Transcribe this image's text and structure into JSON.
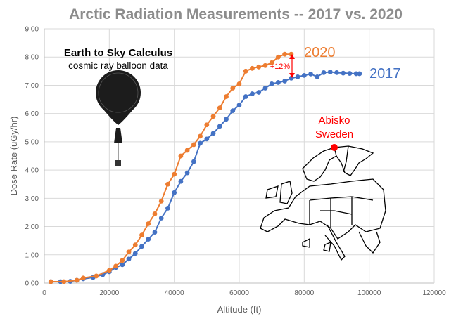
{
  "chart_data": {
    "type": "line",
    "title": "Arctic Radiation Measurements -- 2017 vs. 2020",
    "xlabel": "Altitude (ft)",
    "ylabel": "Dose Rate (uGy/hr)",
    "xlim": [
      0,
      120000
    ],
    "ylim": [
      0,
      9
    ],
    "xticks": [
      "0",
      "20000",
      "40000",
      "60000",
      "80000",
      "100000",
      "120000"
    ],
    "yticks": [
      "0.00",
      "1.00",
      "2.00",
      "3.00",
      "4.00",
      "5.00",
      "6.00",
      "7.00",
      "8.00",
      "9.00"
    ],
    "grid": true,
    "series": [
      {
        "name": "2017",
        "color": "#4472c4",
        "x": [
          2000,
          5000,
          8000,
          10000,
          12000,
          15000,
          18000,
          20000,
          22000,
          24000,
          26000,
          28000,
          30000,
          32000,
          34000,
          36000,
          38000,
          40000,
          42000,
          44000,
          46000,
          48000,
          50000,
          52000,
          54000,
          56000,
          58000,
          60000,
          62000,
          64000,
          66000,
          68000,
          70000,
          72000,
          74000,
          76000,
          78000,
          80000,
          82000,
          84000,
          86000,
          88000,
          90000,
          92000,
          94000,
          96000,
          97000
        ],
        "y": [
          0.05,
          0.05,
          0.06,
          0.1,
          0.15,
          0.2,
          0.3,
          0.4,
          0.55,
          0.65,
          0.85,
          1.05,
          1.3,
          1.55,
          1.8,
          2.3,
          2.65,
          3.2,
          3.6,
          3.9,
          4.3,
          4.95,
          5.1,
          5.3,
          5.55,
          5.8,
          6.1,
          6.3,
          6.6,
          6.7,
          6.75,
          6.9,
          7.05,
          7.1,
          7.15,
          7.25,
          7.3,
          7.35,
          7.4,
          7.3,
          7.45,
          7.47,
          7.45,
          7.43,
          7.42,
          7.41,
          7.41
        ]
      },
      {
        "name": "2020",
        "color": "#ed7d31",
        "x": [
          2000,
          6000,
          10000,
          12000,
          16000,
          20000,
          22000,
          24000,
          26000,
          28000,
          30000,
          32000,
          34000,
          36000,
          38000,
          40000,
          42000,
          44000,
          46000,
          48000,
          50000,
          52000,
          54000,
          56000,
          58000,
          60000,
          62000,
          64000,
          66000,
          68000,
          70000,
          72000,
          74000,
          76000
        ],
        "y": [
          0.05,
          0.05,
          0.1,
          0.18,
          0.25,
          0.45,
          0.6,
          0.8,
          1.1,
          1.35,
          1.7,
          2.1,
          2.45,
          2.9,
          3.5,
          3.85,
          4.5,
          4.7,
          4.9,
          5.2,
          5.6,
          5.9,
          6.2,
          6.6,
          6.9,
          7.05,
          7.5,
          7.6,
          7.65,
          7.7,
          7.8,
          8.0,
          8.1,
          8.1
        ]
      }
    ],
    "annotations": {
      "diff": "+12%",
      "brand": "Earth to Sky Calculus",
      "subtitle": "cosmic ray balloon data",
      "location_line1": "Abisko",
      "location_line2": "Sweden"
    },
    "accent": "#ff0000"
  }
}
